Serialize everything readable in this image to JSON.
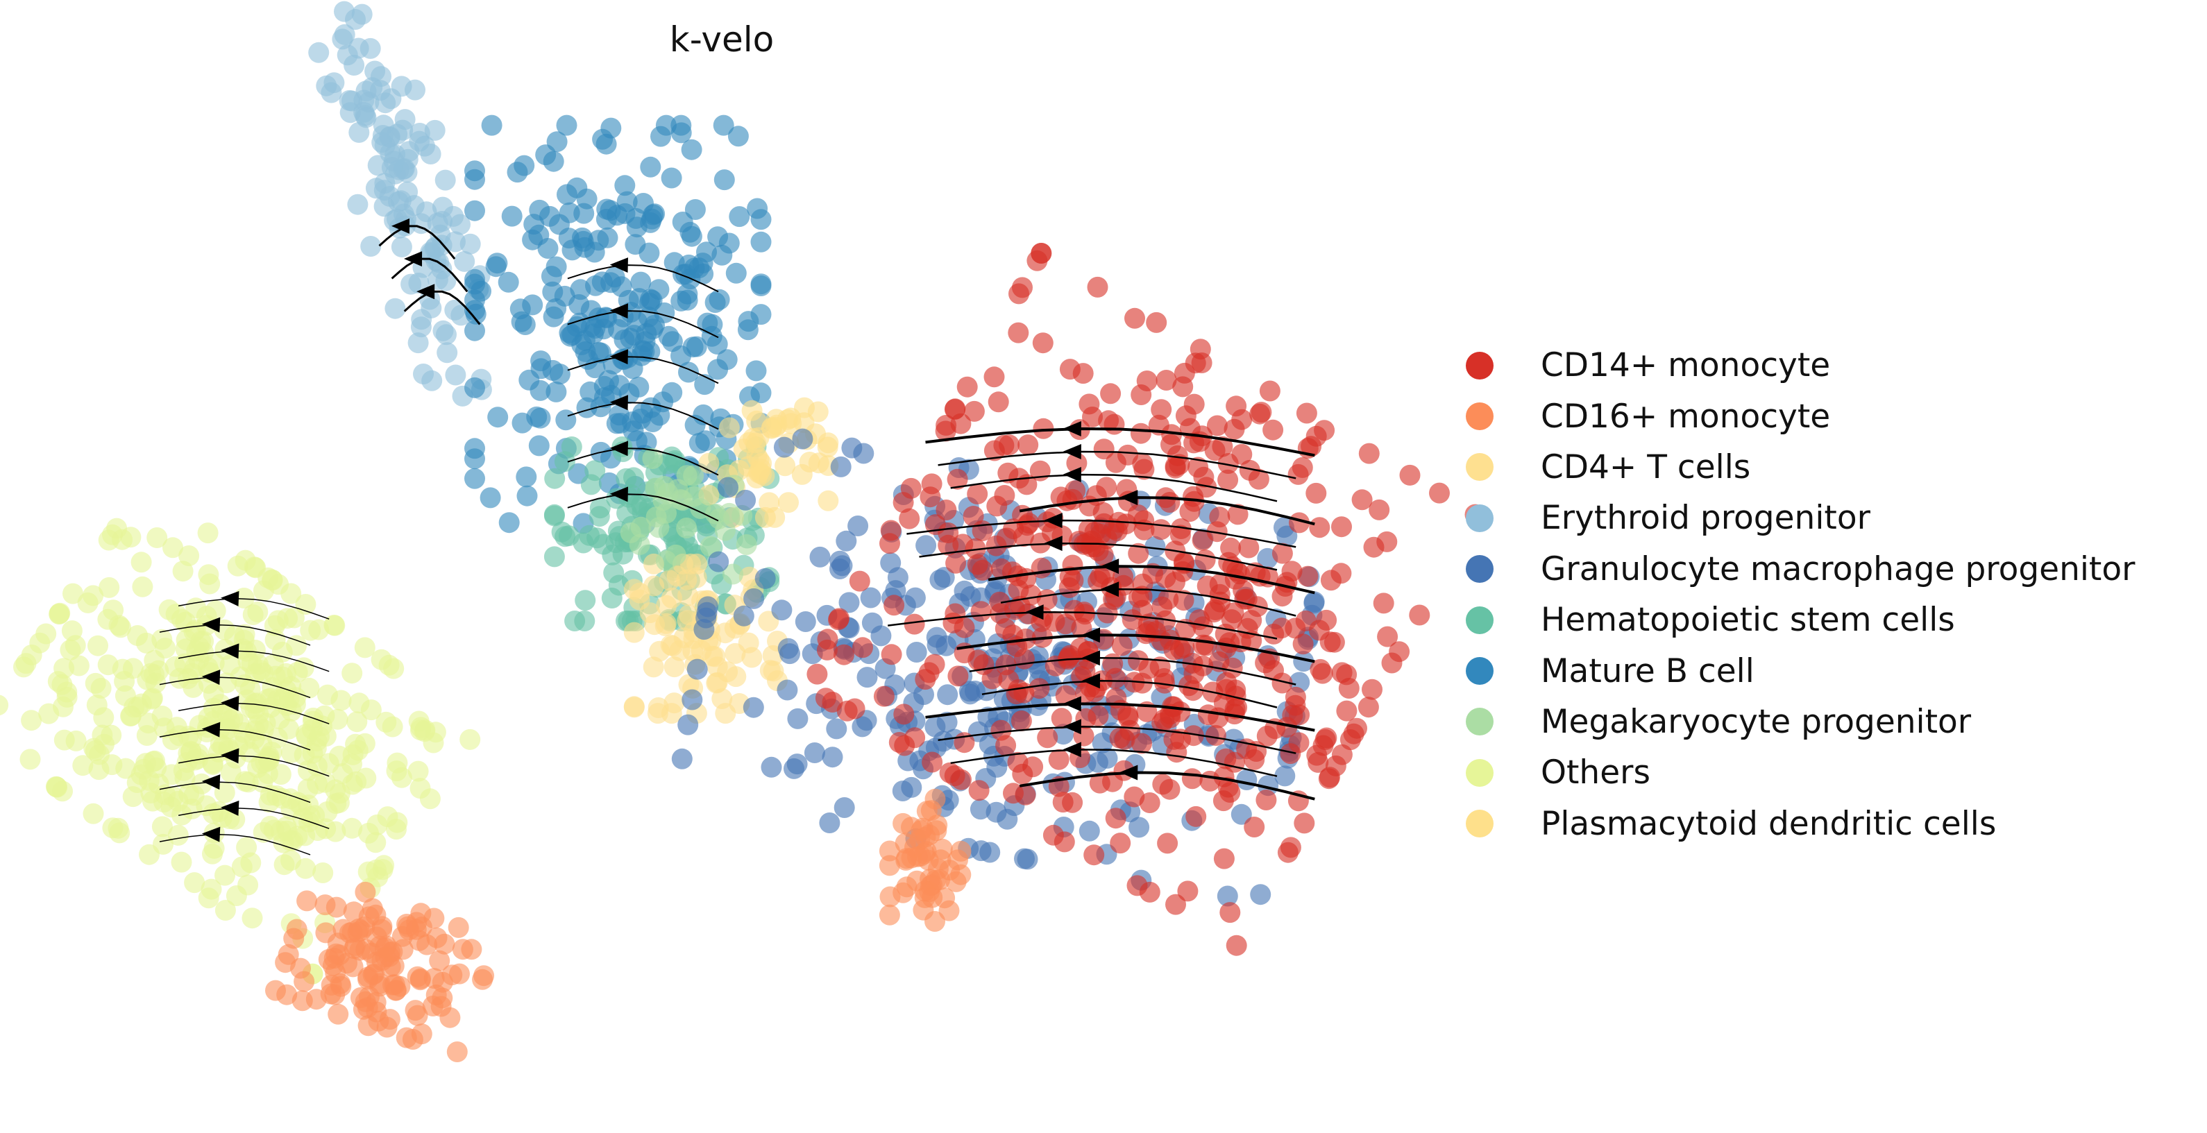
{
  "chart_data": {
    "type": "scatter",
    "title": "k-velo",
    "xlabel": "",
    "ylabel": "",
    "axes_visible": false,
    "grid": false,
    "legend_position": "right",
    "overlay": "velocity streamlines with arrowheads",
    "categories": [
      {
        "name": "CD14+ monocyte",
        "color": "#d73027"
      },
      {
        "name": "CD16+ monocyte",
        "color": "#fc8d59"
      },
      {
        "name": "CD4+ T cells",
        "color": "#fee090"
      },
      {
        "name": "Erythroid progenitor",
        "color": "#91bfdb"
      },
      {
        "name": "Granulocyte macrophage progenitor",
        "color": "#4575b4"
      },
      {
        "name": "Hematopoietic stem cells",
        "color": "#66c2a5"
      },
      {
        "name": "Mature B cell",
        "color": "#3288bd"
      },
      {
        "name": "Megakaryocyte progenitor",
        "color": "#abdda4"
      },
      {
        "name": "Others",
        "color": "#e6f598"
      },
      {
        "name": "Plasmacytoid dendritic cells",
        "color": "#fee08b"
      }
    ],
    "clusters": [
      {
        "category": "Others",
        "center": [
          -0.78,
          -0.22
        ],
        "spread": [
          0.17,
          0.12
        ],
        "angle": -35,
        "n": 420
      },
      {
        "category": "CD16+ monocyte",
        "center": [
          -0.53,
          -0.58
        ],
        "spread": [
          0.08,
          0.05
        ],
        "angle": -20,
        "n": 120
      },
      {
        "category": "Erythroid progenitor",
        "center": [
          -0.5,
          0.6
        ],
        "spread": [
          0.04,
          0.17
        ],
        "angle": 18,
        "n": 120
      },
      {
        "category": "Mature B cell",
        "center": [
          -0.16,
          0.4
        ],
        "spread": [
          0.12,
          0.16
        ],
        "angle": 0,
        "n": 260
      },
      {
        "category": "Hematopoietic stem cells",
        "center": [
          -0.09,
          0.08
        ],
        "spread": [
          0.09,
          0.07
        ],
        "angle": 0,
        "n": 140
      },
      {
        "category": "CD4+ T cells",
        "center": [
          -0.02,
          -0.08
        ],
        "spread": [
          0.06,
          0.06
        ],
        "angle": 0,
        "n": 80
      },
      {
        "category": "Plasmacytoid dendritic cells",
        "center": [
          0.08,
          0.2
        ],
        "spread": [
          0.05,
          0.05
        ],
        "angle": 0,
        "n": 50
      },
      {
        "category": "Megakaryocyte progenitor",
        "center": [
          -0.05,
          0.1
        ],
        "spread": [
          0.05,
          0.05
        ],
        "angle": 0,
        "n": 30
      },
      {
        "category": "Granulocyte macrophage progenitor",
        "center": [
          0.45,
          -0.12
        ],
        "spread": [
          0.25,
          0.15
        ],
        "angle": -10,
        "n": 300
      },
      {
        "category": "CD14+ monocyte",
        "center": [
          0.67,
          -0.02
        ],
        "spread": [
          0.21,
          0.2
        ],
        "angle": -30,
        "n": 500
      },
      {
        "category": "CD16+ monocyte",
        "center": [
          0.33,
          -0.42
        ],
        "spread": [
          0.03,
          0.05
        ],
        "angle": 0,
        "n": 50
      }
    ],
    "xlim": [
      -1.1,
      1.1
    ],
    "ylim": [
      -0.8,
      0.8
    ]
  }
}
